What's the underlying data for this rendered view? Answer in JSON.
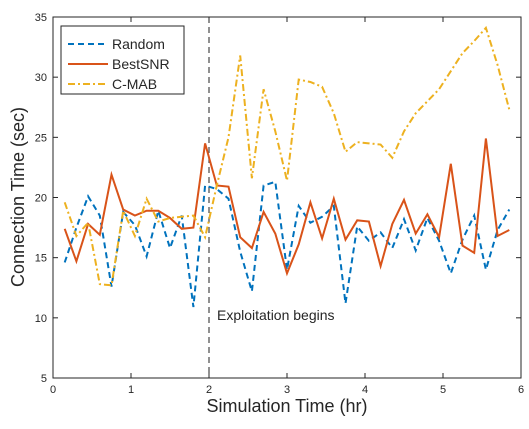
{
  "chart_data": {
    "type": "line",
    "xlabel": "Simulation Time (hr)",
    "ylabel": "Connection Time (sec)",
    "annotation": "Exploitation begins",
    "vline": 2,
    "x": [
      0.15,
      0.3,
      0.45,
      0.6,
      0.75,
      0.9,
      1.05,
      1.2,
      1.35,
      1.5,
      1.65,
      1.8,
      1.95,
      2.1,
      2.25,
      2.4,
      2.55,
      2.7,
      2.85,
      3.0,
      3.15,
      3.3,
      3.45,
      3.6,
      3.75,
      3.9,
      4.05,
      4.2,
      4.35,
      4.5,
      4.65,
      4.8,
      4.95,
      5.1,
      5.25,
      5.4,
      5.55,
      5.7,
      5.85
    ],
    "series": [
      {
        "name": "Random",
        "color": "#0072BD",
        "dash": "6,4",
        "values": [
          14.6,
          17.5,
          20.1,
          18.5,
          12.6,
          18.8,
          17.7,
          15.1,
          18.9,
          15.8,
          18.5,
          10.9,
          21.0,
          20.7,
          19.9,
          15.5,
          12.2,
          21.0,
          21.3,
          14.0,
          19.3,
          17.9,
          18.4,
          19.3,
          11.2,
          17.6,
          16.4,
          17.1,
          15.8,
          18.2,
          15.6,
          18.3,
          16.4,
          13.7,
          16.5,
          18.5,
          14.0,
          17.3,
          19.0
        ]
      },
      {
        "name": "BestSNR",
        "color": "#D95319",
        "dash": "",
        "values": [
          17.4,
          14.7,
          17.8,
          16.9,
          21.9,
          19.0,
          18.5,
          18.9,
          18.9,
          18.3,
          17.4,
          17.5,
          24.5,
          21.0,
          20.9,
          16.7,
          15.8,
          18.8,
          17.0,
          13.7,
          16.1,
          19.6,
          16.6,
          19.9,
          16.5,
          18.1,
          18.0,
          14.3,
          17.8,
          19.8,
          17.0,
          18.6,
          16.7,
          22.8,
          16.0,
          15.4,
          24.9,
          16.8,
          17.3
        ]
      },
      {
        "name": "C-MAB",
        "color": "#EDB120",
        "dash": "7,3,2,3",
        "values": [
          19.6,
          16.8,
          17.9,
          12.8,
          12.7,
          18.9,
          16.8,
          19.9,
          18.0,
          18.3,
          18.4,
          18.5,
          16.7,
          21.0,
          25.0,
          31.8,
          21.6,
          29.0,
          25.5,
          21.4,
          29.8,
          29.6,
          29.2,
          27.0,
          23.8,
          24.6,
          24.5,
          24.4,
          23.3,
          25.5,
          27.0,
          28.0,
          29.0,
          30.5,
          32.0,
          33.0,
          34.1,
          31.0,
          27.3
        ]
      }
    ],
    "xlim": [
      0,
      6
    ],
    "ylim": [
      5,
      35
    ],
    "xticks": [
      0,
      1,
      2,
      3,
      4,
      5,
      6
    ],
    "yticks": [
      5,
      10,
      15,
      20,
      25,
      30,
      35
    ]
  }
}
